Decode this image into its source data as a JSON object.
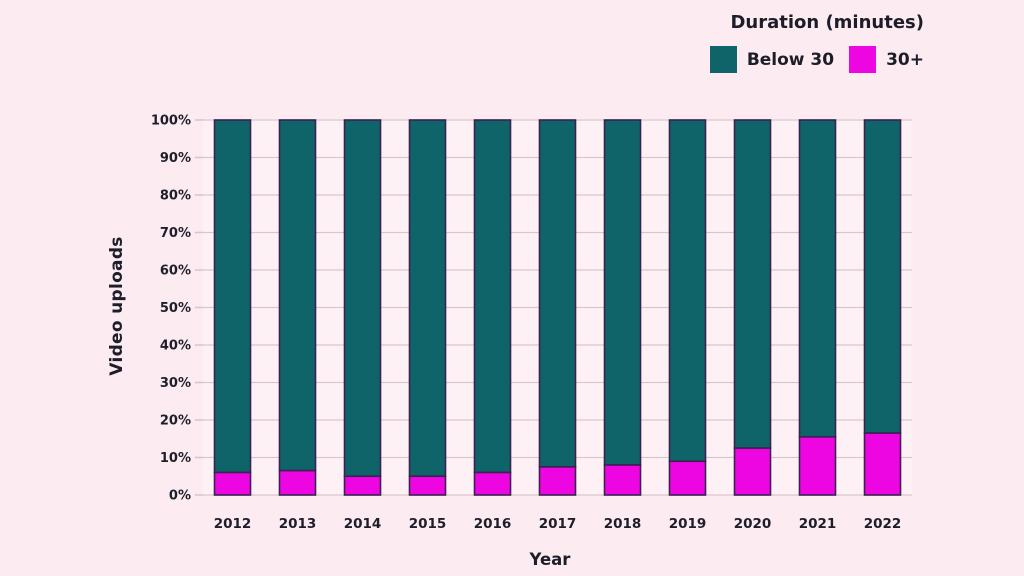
{
  "page": {
    "background": "#fcebf1",
    "plot_background": "#fff6f8"
  },
  "legend": {
    "title": "Duration (minutes)",
    "items": [
      {
        "label": "Below 30",
        "color": "#0e6469",
        "swatch_icon": "teal-square-swatch"
      },
      {
        "label": "30+",
        "color": "#ee06e2",
        "swatch_icon": "magenta-square-swatch"
      }
    ]
  },
  "chart_data": {
    "type": "bar",
    "stacked": true,
    "orientation": "vertical",
    "title": "",
    "xlabel": "Year",
    "ylabel": "Video uploads",
    "categories": [
      "2012",
      "2013",
      "2014",
      "2015",
      "2016",
      "2017",
      "2018",
      "2019",
      "2020",
      "2021",
      "2022"
    ],
    "series": [
      {
        "name": "30+",
        "color": "#ee06e2",
        "values": [
          6,
          6.5,
          5,
          5,
          6,
          7.5,
          8,
          9,
          12.5,
          15.5,
          16.5
        ]
      },
      {
        "name": "Below 30",
        "color": "#0e6469",
        "values": [
          94,
          93.5,
          95,
          95,
          94,
          92.5,
          92,
          91,
          87.5,
          84.5,
          83.5
        ]
      }
    ],
    "ylim": [
      0,
      100
    ],
    "y_tick_step": 10,
    "y_tick_labels": [
      "0%",
      "10%",
      "20%",
      "30%",
      "40%",
      "50%",
      "60%",
      "70%",
      "80%",
      "90%",
      "100%"
    ],
    "grid": true,
    "grid_color": "#d9c5cd",
    "bar_outline_color": "#3a2150",
    "text_color": "#1e1e2a",
    "legend_position": "top-right"
  }
}
